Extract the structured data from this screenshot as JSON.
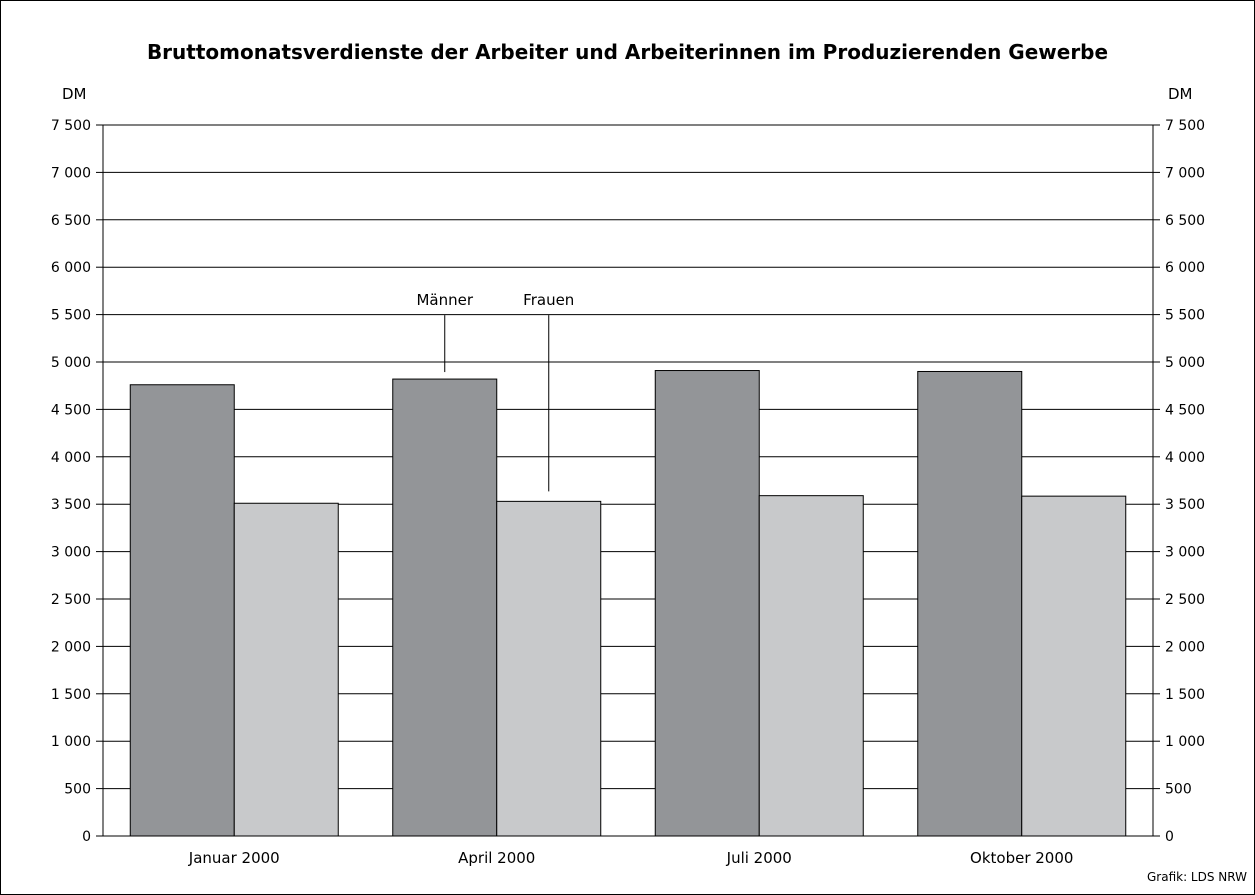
{
  "chart_data": {
    "type": "bar",
    "title": "Bruttomonatsverdienste der Arbeiter und Arbeiterinnen im Produzierenden Gewerbe",
    "ylabel_left": "DM",
    "ylabel_right": "DM",
    "categories": [
      "Januar 2000",
      "April 2000",
      "Juli 2000",
      "Oktober 2000"
    ],
    "series": [
      {
        "name": "Männer",
        "values": [
          4760,
          4820,
          4910,
          4900
        ],
        "color": "#939598"
      },
      {
        "name": "Frauen",
        "values": [
          3510,
          3530,
          3590,
          3585
        ],
        "color": "#c8c9cb"
      }
    ],
    "ylim": [
      0,
      7500
    ],
    "yticks": [
      0,
      500,
      1000,
      1500,
      2000,
      2500,
      3000,
      3500,
      4000,
      4500,
      5000,
      5500,
      6000,
      6500,
      7000,
      7500
    ],
    "ytick_labels": [
      "0",
      "500",
      "1 000",
      "1 500",
      "2 000",
      "2 500",
      "3 000",
      "3 500",
      "4 000",
      "4 500",
      "5 000",
      "5 500",
      "6 000",
      "6 500",
      "7 000",
      "7 500"
    ],
    "grid": true,
    "legend": "inline-annotations",
    "annotations": [
      "Männer",
      "Frauen"
    ]
  },
  "source": "Grafik: LDS NRW"
}
